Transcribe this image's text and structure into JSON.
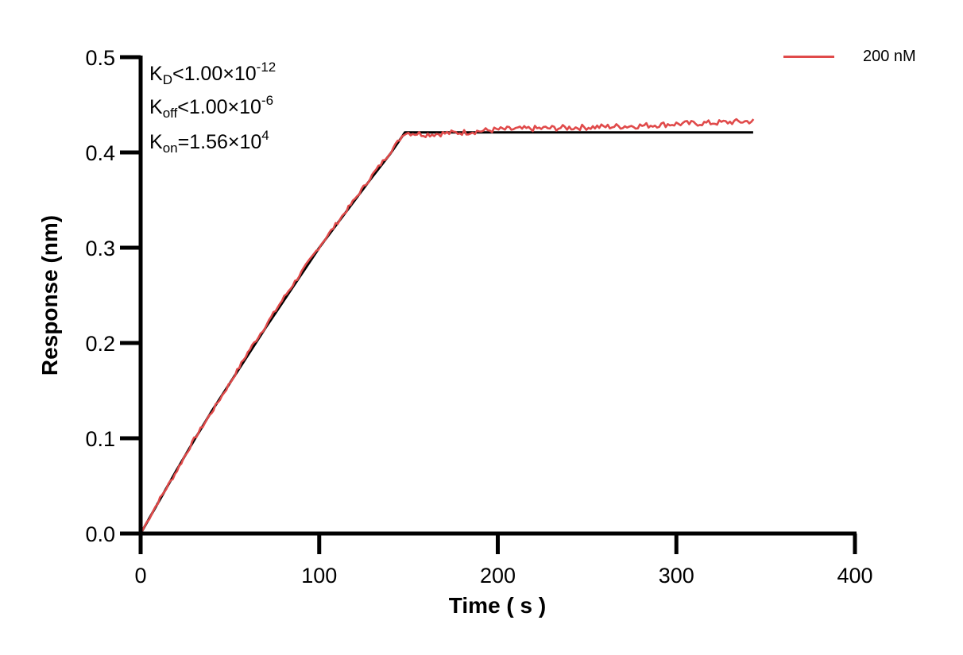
{
  "chart_data": {
    "type": "line",
    "title": "",
    "xlabel": "Time ( s )",
    "ylabel": "Response (nm)",
    "xlim": [
      0,
      400
    ],
    "ylim": [
      0,
      0.5
    ],
    "x_ticks": [
      0,
      100,
      200,
      300,
      400
    ],
    "x_tick_labels": [
      "0",
      "100",
      "200",
      "300",
      "400"
    ],
    "y_ticks": [
      0.0,
      0.1,
      0.2,
      0.3,
      0.4,
      0.5
    ],
    "y_tick_labels": [
      "0.0",
      "0.1",
      "0.2",
      "0.3",
      "0.4",
      "0.5"
    ],
    "grid": false,
    "legend_position": "top-right",
    "series": [
      {
        "name": "200 nM",
        "color": "#e04a4a",
        "role": "measured",
        "x": [
          0,
          10,
          20,
          30,
          40,
          50,
          60,
          70,
          80,
          90,
          100,
          110,
          120,
          130,
          140,
          148,
          160,
          180,
          200,
          220,
          240,
          260,
          280,
          300,
          320,
          344
        ],
        "values": [
          0.0,
          0.034,
          0.065,
          0.099,
          0.128,
          0.158,
          0.19,
          0.218,
          0.247,
          0.274,
          0.301,
          0.326,
          0.351,
          0.377,
          0.401,
          0.421,
          0.419,
          0.421,
          0.424,
          0.425,
          0.426,
          0.427,
          0.428,
          0.43,
          0.431,
          0.433
        ]
      },
      {
        "name": "fit",
        "color": "#000000",
        "role": "fit",
        "x": [
          0,
          10,
          20,
          30,
          40,
          50,
          60,
          70,
          80,
          90,
          100,
          110,
          120,
          130,
          140,
          148,
          343
        ],
        "values": [
          0.0,
          0.033,
          0.066,
          0.098,
          0.129,
          0.158,
          0.187,
          0.216,
          0.244,
          0.272,
          0.3,
          0.325,
          0.35,
          0.375,
          0.399,
          0.421,
          0.421
        ]
      }
    ],
    "annotations": [
      {
        "text": "KD<1.00×10^-12"
      },
      {
        "text": "Koff<1.00×10^-6"
      },
      {
        "text": "Kon=1.56×10^4"
      }
    ]
  },
  "annotations": {
    "kd": {
      "k": "K",
      "sub": "D",
      "op": "<",
      "mant": "1.00×10",
      "exp": "-12"
    },
    "koff": {
      "k": "K",
      "sub": "off",
      "op": "<",
      "mant": "1.00×10",
      "exp": "-6"
    },
    "kon": {
      "k": "K",
      "sub": "on",
      "op": "=",
      "mant": "1.56×10",
      "exp": "4"
    }
  },
  "legend": {
    "label": "200 nM",
    "color": "#e04a4a"
  },
  "axes": {
    "xlabel": "Time ( s )",
    "ylabel": "Response (nm)"
  }
}
